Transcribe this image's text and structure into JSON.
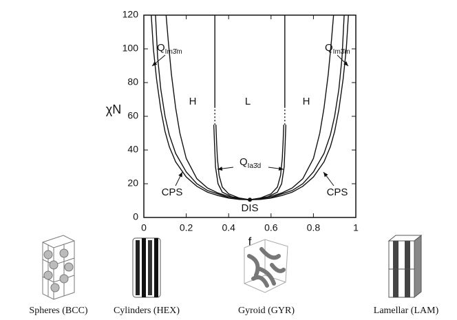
{
  "chart_data": {
    "type": "line",
    "xlabel": "f",
    "ylabel": "χN",
    "xlim": [
      0,
      1
    ],
    "xticks": [
      0,
      0.2,
      0.4,
      0.6,
      0.8,
      1
    ],
    "ylim": [
      0,
      120
    ],
    "yticks": [
      0,
      20,
      40,
      60,
      80,
      100,
      120
    ],
    "color": "#111111",
    "series": [
      {
        "x": [
          0.035,
          0.045,
          0.06,
          0.08,
          0.1,
          0.12,
          0.15,
          0.2,
          0.25,
          0.3,
          0.35,
          0.4,
          0.45,
          0.5,
          0.55,
          0.6,
          0.65,
          0.7,
          0.75,
          0.8,
          0.85,
          0.88,
          0.9,
          0.92,
          0.94,
          0.955,
          0.965
        ],
        "values": [
          120,
          100,
          82,
          64,
          51,
          42,
          33,
          24,
          18.5,
          15,
          13,
          11.5,
          10.7,
          10.5,
          10.7,
          11.5,
          13,
          15,
          18.5,
          24,
          33,
          42,
          51,
          64,
          82,
          100,
          120
        ]
      },
      {
        "x": [
          0.055,
          0.065,
          0.08,
          0.1,
          0.12,
          0.15,
          0.2,
          0.25,
          0.3,
          0.4,
          0.5,
          0.6,
          0.7,
          0.75,
          0.8,
          0.85,
          0.88,
          0.9,
          0.92,
          0.935,
          0.945
        ],
        "values": [
          120,
          95,
          76,
          60,
          49,
          38,
          27,
          20,
          16,
          11.8,
          10.5,
          11.8,
          16,
          20,
          27,
          38,
          49,
          60,
          76,
          95,
          120
        ]
      },
      {
        "x": [
          0.105,
          0.115,
          0.13,
          0.15,
          0.17,
          0.2,
          0.25,
          0.3,
          0.35,
          0.4,
          0.5,
          0.6,
          0.65,
          0.7,
          0.75,
          0.8,
          0.83,
          0.85,
          0.87,
          0.885,
          0.895
        ],
        "values": [
          120,
          105,
          85,
          65,
          50,
          35,
          23,
          17.5,
          14.5,
          12.5,
          10.5,
          12.5,
          14.5,
          17.5,
          23,
          35,
          50,
          65,
          85,
          105,
          120
        ]
      },
      {
        "x": [
          0.33,
          0.333,
          0.338,
          0.35,
          0.37,
          0.42,
          0.5,
          0.58,
          0.63,
          0.65,
          0.662,
          0.667,
          0.67
        ],
        "values": [
          55,
          45,
          30,
          20,
          15,
          12,
          10.5,
          12,
          15,
          20,
          30,
          45,
          55
        ]
      },
      {
        "x": [
          0.34,
          0.343,
          0.347,
          0.355,
          0.37,
          0.4,
          0.45,
          0.5,
          0.55,
          0.6,
          0.63,
          0.645,
          0.653,
          0.657,
          0.66
        ],
        "values": [
          55,
          45,
          35,
          25,
          18,
          14,
          11.5,
          10.5,
          11.5,
          14,
          18,
          25,
          35,
          45,
          55
        ]
      },
      {
        "x": [
          0.335,
          0.335
        ],
        "values": [
          55,
          65
        ],
        "dashed": true
      },
      {
        "x": [
          0.665,
          0.665
        ],
        "values": [
          55,
          65
        ],
        "dashed": true
      },
      {
        "x": [
          0.335,
          0.335
        ],
        "values": [
          65,
          120
        ]
      },
      {
        "x": [
          0.665,
          0.665
        ],
        "values": [
          65,
          120
        ]
      }
    ],
    "points": {
      "x": [
        0.5
      ],
      "values": [
        10.5
      ]
    },
    "annotations": [
      {
        "base": "Q",
        "sub": "Im3̄m"
      },
      {
        "base": "Q",
        "sub": "Im3̄m"
      },
      "H",
      "L",
      "H",
      {
        "base": "Q",
        "sub": "Ia3̄d"
      },
      "CPS",
      "CPS",
      "DIS"
    ]
  },
  "structures": [
    "Spheres (BCC)",
    "Cylinders (HEX)",
    "Gyroid (GYR)",
    "Lamellar (LAM)"
  ]
}
